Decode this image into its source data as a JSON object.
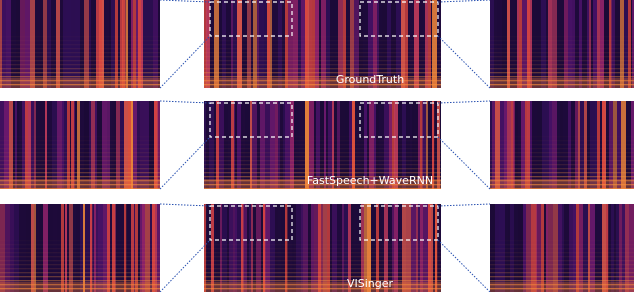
{
  "panels": [
    {
      "label": "GroundTruth"
    },
    {
      "label": "FastSpeech+WaveRNN"
    },
    {
      "label": "VISinger"
    }
  ]
}
